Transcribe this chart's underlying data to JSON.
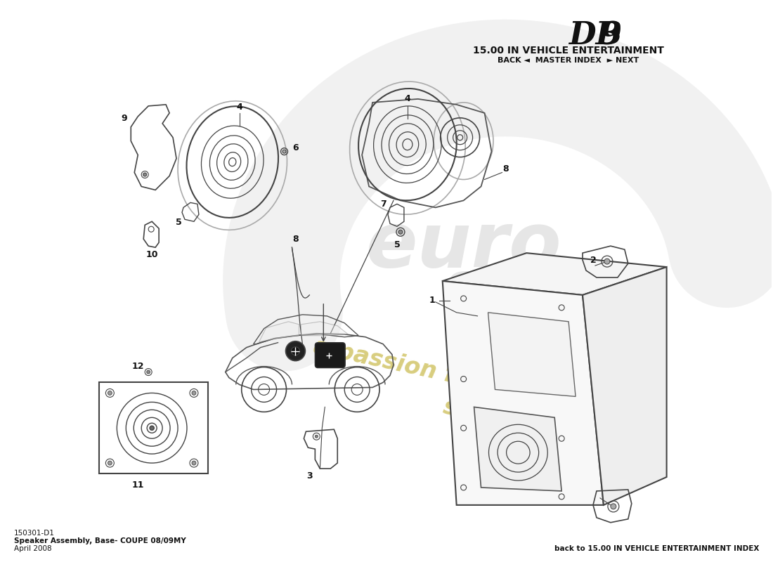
{
  "title_db9": "DB9",
  "title_section": "15.00 IN VEHICLE ENTERTAINMENT",
  "title_nav": "BACK ◄  MASTER INDEX  ► NEXT",
  "bottom_left_line1": "150301-D1",
  "bottom_left_line2": "Speaker Assembly, Base- COUPE 08/09MY",
  "bottom_left_line3": "April 2008",
  "bottom_right": "back to 15.00 IN VEHICLE ENTERTAINMENT INDEX",
  "bg_color": "#ffffff",
  "watermark_color_text": "#d4c870",
  "watermark_color_logo": "#d0d0d0",
  "parts_color": "#333333",
  "line_color": "#444444"
}
